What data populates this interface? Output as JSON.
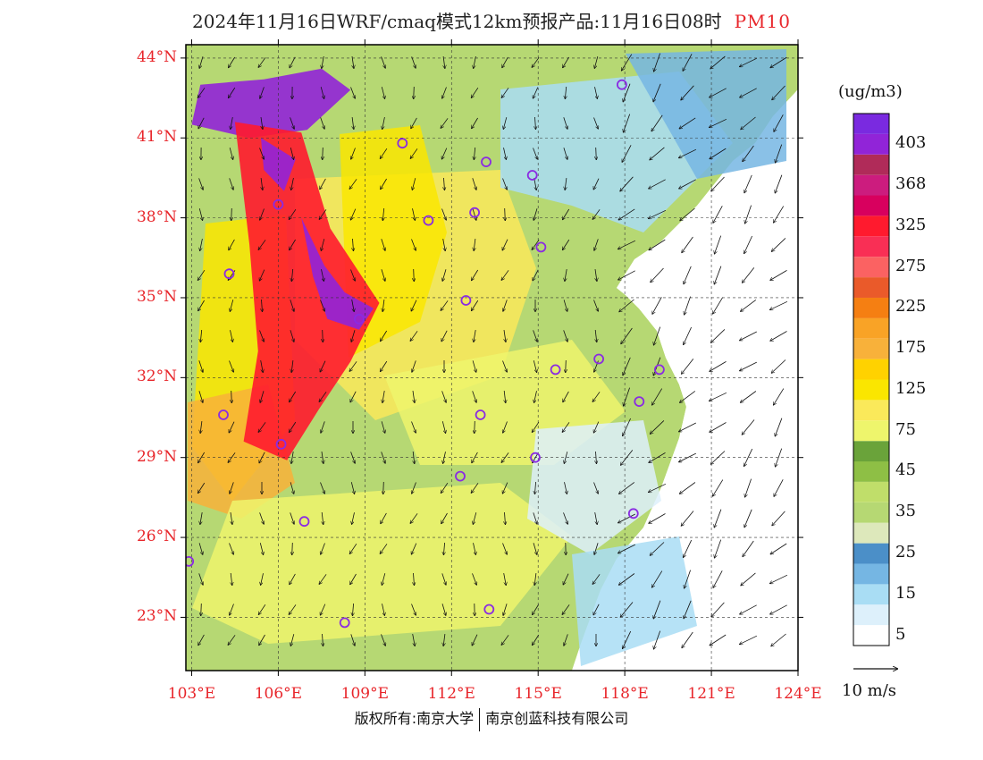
{
  "title": {
    "main": "2024年11月16日WRF/cmaq模式12km预报产品:11月16日08时",
    "variable": "PM10"
  },
  "map": {
    "lon_range": [
      102.8,
      124.0
    ],
    "lat_range": [
      21.0,
      44.5
    ],
    "lat_ticks": [
      {
        "value": 44,
        "label": "44°N"
      },
      {
        "value": 41,
        "label": "41°N"
      },
      {
        "value": 38,
        "label": "38°N"
      },
      {
        "value": 35,
        "label": "35°N"
      },
      {
        "value": 32,
        "label": "32°N"
      },
      {
        "value": 29,
        "label": "29°N"
      },
      {
        "value": 26,
        "label": "26°N"
      },
      {
        "value": 23,
        "label": "23°N"
      }
    ],
    "lon_ticks": [
      {
        "value": 103,
        "label": "103°E"
      },
      {
        "value": 106,
        "label": "106°E"
      },
      {
        "value": 109,
        "label": "109°E"
      },
      {
        "value": 112,
        "label": "112°E"
      },
      {
        "value": 115,
        "label": "115°E"
      },
      {
        "value": 118,
        "label": "118°E"
      },
      {
        "value": 121,
        "label": "121°E"
      },
      {
        "value": 124,
        "label": "124°E"
      }
    ],
    "pollution_zones": [
      {
        "level": 403,
        "polygon": [
          [
            103.3,
            43.0
          ],
          [
            105.5,
            43.2
          ],
          [
            107.5,
            43.6
          ],
          [
            108.5,
            42.8
          ],
          [
            107.0,
            41.3
          ],
          [
            105.0,
            41.0
          ],
          [
            103.0,
            41.5
          ]
        ]
      },
      {
        "level": 325,
        "polygon": [
          [
            104.5,
            41.6
          ],
          [
            106.8,
            41.2
          ],
          [
            107.8,
            37.6
          ],
          [
            109.5,
            34.8
          ],
          [
            108.5,
            32.6
          ],
          [
            107.4,
            30.8
          ],
          [
            106.3,
            28.9
          ],
          [
            104.8,
            29.6
          ],
          [
            105.3,
            33.0
          ],
          [
            105.0,
            37.0
          ]
        ]
      },
      {
        "level": 403,
        "polygon": [
          [
            106.8,
            38.0
          ],
          [
            107.6,
            36.2
          ],
          [
            108.3,
            35.2
          ],
          [
            109.3,
            34.6
          ],
          [
            108.8,
            33.8
          ],
          [
            107.7,
            34.2
          ],
          [
            107.2,
            35.8
          ]
        ]
      },
      {
        "level": 403,
        "polygon": [
          [
            105.4,
            41.0
          ],
          [
            106.6,
            40.2
          ],
          [
            106.2,
            39.0
          ],
          [
            105.5,
            39.8
          ]
        ]
      }
    ],
    "cities": [
      {
        "lon": 117.9,
        "lat": 43.0
      },
      {
        "lon": 110.3,
        "lat": 40.8
      },
      {
        "lon": 113.2,
        "lat": 40.1
      },
      {
        "lon": 114.8,
        "lat": 39.6
      },
      {
        "lon": 111.2,
        "lat": 37.9
      },
      {
        "lon": 112.8,
        "lat": 38.2
      },
      {
        "lon": 115.1,
        "lat": 36.9
      },
      {
        "lon": 104.3,
        "lat": 35.9
      },
      {
        "lon": 106.0,
        "lat": 38.5
      },
      {
        "lon": 112.5,
        "lat": 34.9
      },
      {
        "lon": 108.8,
        "lat": 34.2
      },
      {
        "lon": 115.6,
        "lat": 32.3
      },
      {
        "lon": 117.1,
        "lat": 32.7
      },
      {
        "lon": 119.2,
        "lat": 32.3
      },
      {
        "lon": 104.1,
        "lat": 30.6
      },
      {
        "lon": 106.1,
        "lat": 29.5
      },
      {
        "lon": 113.0,
        "lat": 30.6
      },
      {
        "lon": 118.5,
        "lat": 31.1
      },
      {
        "lon": 114.9,
        "lat": 29.0
      },
      {
        "lon": 112.3,
        "lat": 28.3
      },
      {
        "lon": 106.9,
        "lat": 26.6
      },
      {
        "lon": 118.3,
        "lat": 26.9
      },
      {
        "lon": 102.9,
        "lat": 25.1
      },
      {
        "lon": 108.3,
        "lat": 22.8
      },
      {
        "lon": 113.3,
        "lat": 23.3
      }
    ]
  },
  "legend": {
    "unit": "(ug/m3)",
    "levels": [
      {
        "color": "#ffffff",
        "label": "5"
      },
      {
        "color": "#ddf0fb",
        "label": ""
      },
      {
        "color": "#a9ddf4",
        "label": "15"
      },
      {
        "color": "#75b6e3",
        "label": ""
      },
      {
        "color": "#4b8fc8",
        "label": "25"
      },
      {
        "color": "#dde8bb",
        "label": ""
      },
      {
        "color": "#b6d873",
        "label": "35"
      },
      {
        "color": "#c0de6a",
        "label": ""
      },
      {
        "color": "#8ebf45",
        "label": "45"
      },
      {
        "color": "#6aa33a",
        "label": ""
      },
      {
        "color": "#eef56c",
        "label": "75"
      },
      {
        "color": "#fae95a",
        "label": ""
      },
      {
        "color": "#fae600",
        "label": "125"
      },
      {
        "color": "#ffd200",
        "label": ""
      },
      {
        "color": "#f8b13a",
        "label": "175"
      },
      {
        "color": "#f9a326",
        "label": ""
      },
      {
        "color": "#f57f12",
        "label": "225"
      },
      {
        "color": "#ea5a2a",
        "label": ""
      },
      {
        "color": "#fb6262",
        "label": "275"
      },
      {
        "color": "#f92f55",
        "label": ""
      },
      {
        "color": "#ff1a2e",
        "label": "325"
      },
      {
        "color": "#d8005e",
        "label": ""
      },
      {
        "color": "#cc1c7e",
        "label": "368"
      },
      {
        "color": "#b02b59",
        "label": ""
      },
      {
        "color": "#9124d8",
        "label": "403"
      },
      {
        "color": "#7a2ae0",
        "label": ""
      }
    ]
  },
  "wind_reference": {
    "label": "10 m/s"
  },
  "footer": {
    "left": "版权所有:南京大学",
    "right": "南京创蓝科技有限公司"
  }
}
